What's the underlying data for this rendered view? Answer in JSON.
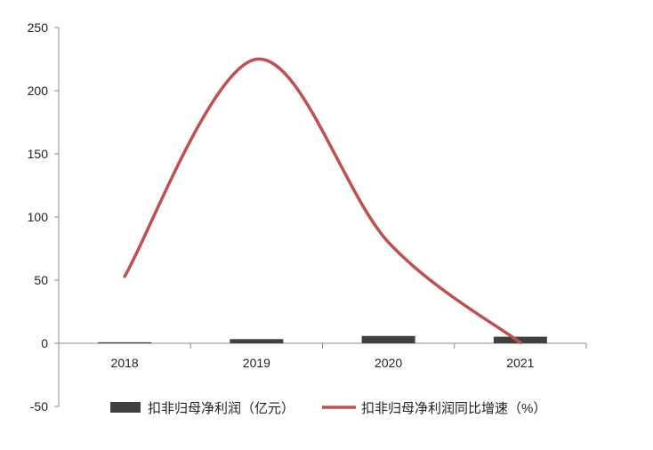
{
  "chart_data": {
    "type": "bar",
    "categories": [
      "2018",
      "2019",
      "2020",
      "2021"
    ],
    "series": [
      {
        "name": "扣非归母净利润（亿元）",
        "type": "bar",
        "values": [
          0.8,
          3.3,
          5.8,
          5.2
        ],
        "color": "#404040"
      },
      {
        "name": "扣非归母净利润同比增速（%）",
        "type": "line",
        "smooth": true,
        "values": [
          53,
          225,
          80,
          0.5
        ],
        "color": "#C0504D"
      }
    ],
    "y_ticks": [
      "-50",
      "0",
      "50",
      "100",
      "150",
      "200",
      "250"
    ],
    "ylim": [
      -50,
      250
    ],
    "grid": false,
    "legend_position": "bottom"
  }
}
